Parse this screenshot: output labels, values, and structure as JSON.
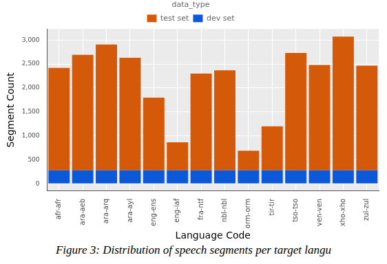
{
  "chart_data": {
    "type": "bar",
    "stacked": true,
    "caption": "Figure 3: Distribution of speech segments per target langu",
    "x_label": "Language Code",
    "y_label": "Segment Count",
    "legend_title": "data_type",
    "legend": "top",
    "grid": true,
    "categories": [
      "afr-afr",
      "ara-aeb",
      "ara-arq",
      "ara-ayl",
      "eng-ens",
      "eng-iaf",
      "fra-ntf",
      "nbl-nbl",
      "orm-orm",
      "tir-tir",
      "tso-tso",
      "ven-ven",
      "xho-xho",
      "zul-zul"
    ],
    "series": [
      {
        "name": "test set",
        "color": "#D45A0A",
        "values": [
          2140,
          2410,
          2625,
          2350,
          1520,
          585,
          2020,
          2090,
          410,
          920,
          2450,
          2200,
          2790,
          2185
        ]
      },
      {
        "name": "dev set",
        "color": "#0B58D8",
        "values": [
          280,
          280,
          280,
          280,
          280,
          280,
          280,
          280,
          280,
          280,
          280,
          280,
          280,
          280
        ]
      }
    ],
    "ylim": [
      -150,
      3230
    ],
    "yticks": [
      0,
      500,
      1000,
      1500,
      2000,
      2500,
      3000
    ]
  }
}
